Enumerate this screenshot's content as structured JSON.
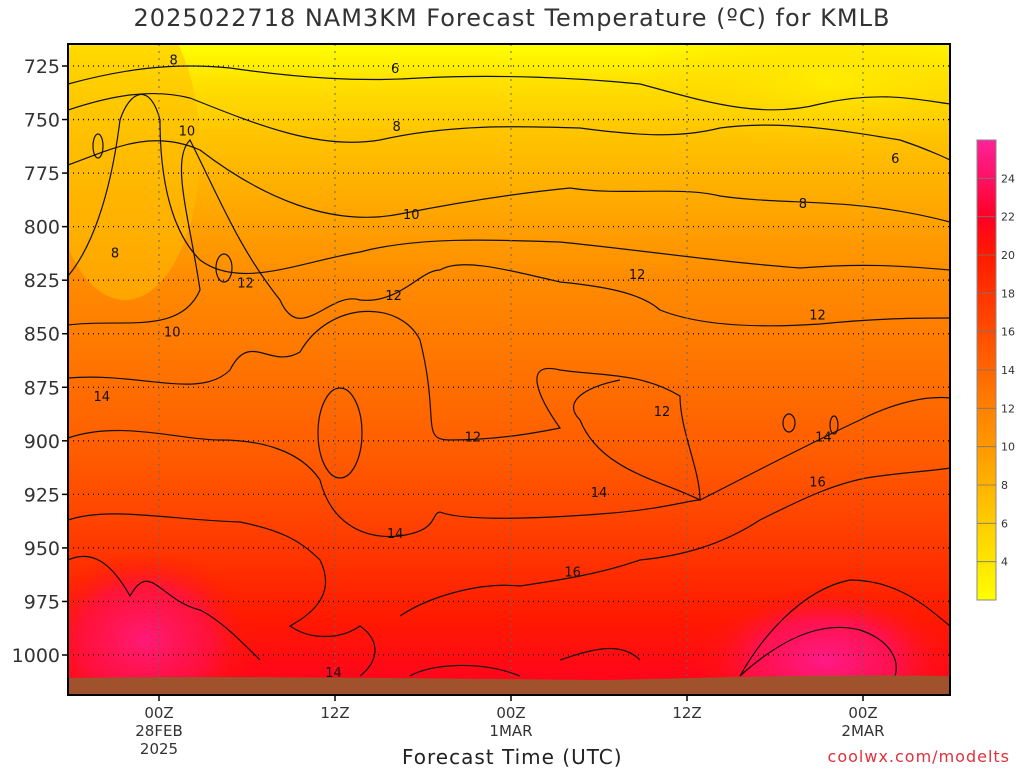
{
  "title": "2025022718 NAM3KM Forecast Temperature (ºC) for KMLB",
  "credit": "coolwx.com/modelts",
  "chart_data": {
    "type": "heatmap",
    "title": "2025022718 NAM3KM Forecast Temperature (ºC) for KMLB",
    "xlabel": "Forecast Time (UTC)",
    "ylabel": "",
    "y_scale": "pressure (hPa), inverted",
    "ylim": [
      1012,
      712
    ],
    "yticks": [
      725,
      750,
      775,
      800,
      825,
      850,
      875,
      900,
      925,
      950,
      975,
      1000
    ],
    "xrange_hours": [
      -4,
      46
    ],
    "xticks": [
      {
        "hour": 0,
        "lines": [
          "00Z",
          "28FEB",
          "2025"
        ]
      },
      {
        "hour": 12,
        "lines": [
          "12Z"
        ]
      },
      {
        "hour": 24,
        "lines": [
          "00Z",
          "1MAR"
        ]
      },
      {
        "hour": 36,
        "lines": [
          "12Z"
        ]
      },
      {
        "hour": 48,
        "lines": [
          "00Z",
          "2MAR"
        ]
      }
    ],
    "colorbar": {
      "ticks": [
        4,
        6,
        8,
        10,
        12,
        14,
        16,
        18,
        20,
        22,
        24
      ],
      "range": [
        2,
        26
      ],
      "colors": [
        "#ffff00",
        "#ffe600",
        "#ffcc00",
        "#ffb300",
        "#ff9900",
        "#ff8000",
        "#ff6600",
        "#ff4d00",
        "#ff3300",
        "#ff1a00",
        "#ff0022",
        "#ff1166",
        "#ff2299"
      ]
    },
    "contours": {
      "interval": 2,
      "levels": [
        6,
        8,
        10,
        12,
        14,
        16
      ],
      "labels": [
        {
          "text": "8",
          "hour": 1.0,
          "p": 722
        },
        {
          "text": "6",
          "hour": 16.1,
          "p": 726
        },
        {
          "text": "10",
          "hour": 1.9,
          "p": 755
        },
        {
          "text": "8",
          "hour": 16.2,
          "p": 753
        },
        {
          "text": "6",
          "hour": 50.2,
          "p": 768
        },
        {
          "text": "10",
          "hour": 17.2,
          "p": 794
        },
        {
          "text": "8",
          "hour": 43.9,
          "p": 789
        },
        {
          "text": "8",
          "hour": -3.0,
          "p": 812
        },
        {
          "text": "12",
          "hour": 5.9,
          "p": 826
        },
        {
          "text": "12",
          "hour": 16.0,
          "p": 832
        },
        {
          "text": "12",
          "hour": 32.6,
          "p": 822
        },
        {
          "text": "12",
          "hour": 44.9,
          "p": 841
        },
        {
          "text": "10",
          "hour": 0.9,
          "p": 849
        },
        {
          "text": "14",
          "hour": -3.9,
          "p": 879
        },
        {
          "text": "12",
          "hour": 34.3,
          "p": 886
        },
        {
          "text": "12",
          "hour": 21.4,
          "p": 898
        },
        {
          "text": "14",
          "hour": 45.3,
          "p": 898
        },
        {
          "text": "14",
          "hour": 30.0,
          "p": 924
        },
        {
          "text": "16",
          "hour": 44.9,
          "p": 919
        },
        {
          "text": "14",
          "hour": 16.1,
          "p": 943
        },
        {
          "text": "16",
          "hour": 28.2,
          "p": 961
        },
        {
          "text": "14",
          "hour": 11.9,
          "p": 1008
        }
      ]
    },
    "surface": "ground (brown band at bottom)"
  }
}
